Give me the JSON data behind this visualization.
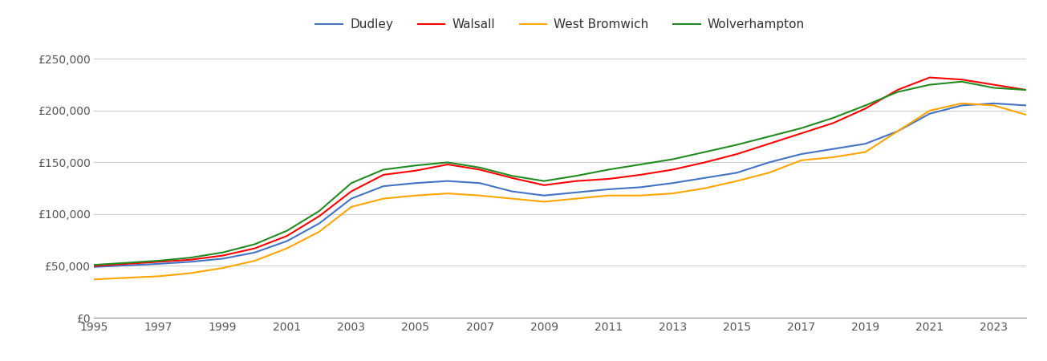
{
  "series": {
    "Dudley": {
      "color": "#4472C4",
      "values": [
        49000,
        50500,
        52000,
        54000,
        57000,
        63000,
        74000,
        91000,
        115000,
        127000,
        130000,
        132000,
        130000,
        122000,
        118000,
        121000,
        124000,
        126000,
        130000,
        135000,
        140000,
        150000,
        158000,
        163000,
        168000,
        180000,
        197000,
        205000,
        207000,
        205000
      ]
    },
    "Walsall": {
      "color": "#FF0000",
      "values": [
        50000,
        52000,
        54000,
        56000,
        60000,
        67000,
        79000,
        98000,
        122000,
        138000,
        142000,
        148000,
        143000,
        135000,
        128000,
        132000,
        134000,
        138000,
        143000,
        150000,
        158000,
        168000,
        178000,
        188000,
        202000,
        220000,
        232000,
        230000,
        225000,
        220000
      ]
    },
    "West Bromwich": {
      "color": "#FFA500",
      "values": [
        37000,
        38500,
        40000,
        43000,
        48000,
        55000,
        67000,
        83000,
        107000,
        115000,
        118000,
        120000,
        118000,
        115000,
        112000,
        115000,
        118000,
        118000,
        120000,
        125000,
        132000,
        140000,
        152000,
        155000,
        160000,
        180000,
        200000,
        207000,
        205000,
        196000
      ]
    },
    "Wolverhampton": {
      "color": "#228B22",
      "values": [
        51000,
        53000,
        55000,
        58000,
        63000,
        71000,
        84000,
        103000,
        130000,
        143000,
        147000,
        150000,
        145000,
        137000,
        132000,
        137000,
        143000,
        148000,
        153000,
        160000,
        167000,
        175000,
        183000,
        193000,
        205000,
        218000,
        225000,
        228000,
        222000,
        220000
      ]
    }
  },
  "years": [
    1995,
    1996,
    1997,
    1998,
    1999,
    2000,
    2001,
    2002,
    2003,
    2004,
    2005,
    2006,
    2007,
    2008,
    2009,
    2010,
    2011,
    2012,
    2013,
    2014,
    2015,
    2016,
    2017,
    2018,
    2019,
    2020,
    2021,
    2022,
    2023,
    2024
  ],
  "ylim": [
    0,
    265000
  ],
  "yticks": [
    0,
    50000,
    100000,
    150000,
    200000,
    250000
  ],
  "xticks": [
    1995,
    1997,
    1999,
    2001,
    2003,
    2005,
    2007,
    2009,
    2011,
    2013,
    2015,
    2017,
    2019,
    2021,
    2023
  ],
  "background_color": "#ffffff",
  "grid_color": "#cccccc",
  "legend_order": [
    "Dudley",
    "Walsall",
    "West Bromwich",
    "Wolverhampton"
  ]
}
